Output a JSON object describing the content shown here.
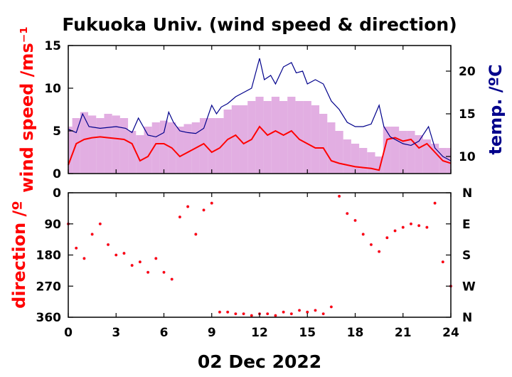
{
  "chart_data": [
    {
      "type": "line",
      "title": "Fukuoka Univ. (wind speed & direction)",
      "xlabel": "02 Dec 2022",
      "xlim": [
        0,
        24
      ],
      "x_ticks": [
        0,
        3,
        6,
        9,
        12,
        15,
        18,
        21,
        24
      ],
      "ylabel": "wind speed /ms⁻¹",
      "ylim": [
        0,
        15
      ],
      "y_ticks": [
        0,
        5,
        10,
        15
      ],
      "y2label": "temp. /ºC",
      "y2lim": [
        8,
        23
      ],
      "y2_ticks": [
        10,
        15,
        20
      ],
      "colors": {
        "mean_wind": "#ff0000",
        "gust_wind": "#dda0dd",
        "temperature": "#00008b"
      },
      "series": [
        {
          "name": "",
          "role": "gust wind speed",
          "style": "bars",
          "x": [
            0,
            0.5,
            1,
            1.5,
            2,
            2.5,
            3,
            3.5,
            4,
            4.5,
            5,
            5.5,
            6,
            6.5,
            7,
            7.5,
            8,
            8.5,
            9,
            9.5,
            10,
            10.5,
            11,
            11.5,
            12,
            12.5,
            13,
            13.5,
            14,
            14.5,
            15,
            15.5,
            16,
            16.5,
            17,
            17.5,
            18,
            18.5,
            19,
            19.5,
            20,
            20.5,
            21,
            21.5,
            22,
            22.5,
            23,
            23.5,
            24
          ],
          "y": [
            5.5,
            6.5,
            7.2,
            6.8,
            6.5,
            7.0,
            6.8,
            6.5,
            5.0,
            4.5,
            5.5,
            6.0,
            6.2,
            6.0,
            5.5,
            5.8,
            6.0,
            6.5,
            6.5,
            6.5,
            7.5,
            8.0,
            8.0,
            8.5,
            9.0,
            8.5,
            9.0,
            8.5,
            9.0,
            8.5,
            8.5,
            8.0,
            7.0,
            6.0,
            5.0,
            4.0,
            3.5,
            3.0,
            2.5,
            2.0,
            5.5,
            5.5,
            5.0,
            5.0,
            4.5,
            4.0,
            3.5,
            3.0,
            3.0
          ]
        },
        {
          "name": "",
          "role": "mean wind speed",
          "x": [
            0,
            0.5,
            1,
            1.5,
            2,
            2.5,
            3,
            3.5,
            4,
            4.5,
            5,
            5.5,
            6,
            6.5,
            7,
            7.5,
            8,
            8.5,
            9,
            9.5,
            10,
            10.5,
            11,
            11.5,
            12,
            12.5,
            13,
            13.5,
            14,
            14.5,
            15,
            15.5,
            16,
            16.5,
            17,
            17.5,
            18,
            18.5,
            19,
            19.5,
            20,
            20.5,
            21,
            21.5,
            22,
            22.5,
            23,
            23.5,
            24
          ],
          "y": [
            1.0,
            3.5,
            4.0,
            4.2,
            4.3,
            4.2,
            4.1,
            4.0,
            3.5,
            1.5,
            2.0,
            3.5,
            3.5,
            3.0,
            2.0,
            2.5,
            3.0,
            3.5,
            2.5,
            3.0,
            4.0,
            4.5,
            3.5,
            4.0,
            5.5,
            4.5,
            5.0,
            4.5,
            5.0,
            4.0,
            3.5,
            3.0,
            3.0,
            1.5,
            1.2,
            1.0,
            0.8,
            0.7,
            0.6,
            0.4,
            4.0,
            4.2,
            3.8,
            4.0,
            3.0,
            3.5,
            2.5,
            1.5,
            1.2
          ]
        },
        {
          "name": "",
          "role": "temperature",
          "axis": "right",
          "x": [
            0,
            0.5,
            0.9,
            1.3,
            2,
            3,
            3.6,
            4,
            4.4,
            5,
            5.5,
            6,
            6.3,
            6.6,
            7,
            7.5,
            8,
            8.5,
            9,
            9.3,
            9.6,
            10,
            10.5,
            11,
            11.5,
            12,
            12.3,
            12.7,
            13,
            13.5,
            14,
            14.3,
            14.7,
            15,
            15.5,
            16,
            16.5,
            17,
            17.5,
            18,
            18.5,
            19,
            19.5,
            19.8,
            20.2,
            21,
            21.5,
            22,
            22.6,
            23,
            23.5,
            24
          ],
          "y": [
            13.2,
            12.8,
            15.0,
            13.5,
            13.3,
            13.5,
            13.3,
            12.8,
            14.5,
            12.5,
            12.3,
            12.8,
            15.2,
            14.0,
            13.0,
            12.8,
            12.7,
            13.3,
            16.0,
            15.0,
            15.8,
            16.2,
            17.0,
            17.5,
            18.0,
            21.5,
            19.0,
            19.5,
            18.5,
            20.5,
            21.0,
            19.8,
            20.0,
            18.5,
            19.0,
            18.5,
            16.5,
            15.5,
            14.0,
            13.5,
            13.5,
            13.8,
            16.0,
            13.5,
            12.3,
            11.5,
            11.3,
            11.8,
            13.5,
            11.0,
            10.0,
            9.5
          ]
        }
      ]
    },
    {
      "type": "scatter",
      "xlim": [
        0,
        24
      ],
      "x_ticks": [
        0,
        3,
        6,
        9,
        12,
        15,
        18,
        21,
        24
      ],
      "ylabel": "direction /º",
      "ylim": [
        0,
        360
      ],
      "y_inverted": true,
      "y_ticks": [
        0,
        90,
        180,
        270,
        360
      ],
      "y2_tick_labels": [
        "N",
        "E",
        "S",
        "W",
        "N"
      ],
      "colors": {
        "mean_direction": "#ff0000",
        "instant_direction": "#dda0dd"
      },
      "series": [
        {
          "name": "",
          "role": "mean wind direction",
          "x": [
            0,
            0.5,
            1,
            1.5,
            2,
            2.5,
            3,
            3.5,
            4,
            4.5,
            5,
            5.5,
            6,
            6.5,
            7,
            7.5,
            8,
            8.5,
            9,
            9.5,
            10,
            10.5,
            11,
            11.5,
            12,
            12.5,
            13,
            13.5,
            14,
            14.5,
            15,
            15.5,
            16,
            16.5,
            17,
            17.5,
            18,
            18.5,
            19,
            19.5,
            20,
            20.5,
            21,
            21.5,
            22,
            22.5,
            23,
            23.5,
            24
          ],
          "y": [
            90,
            160,
            190,
            120,
            90,
            150,
            180,
            175,
            210,
            200,
            230,
            190,
            230,
            250,
            70,
            40,
            120,
            50,
            30,
            345,
            345,
            350,
            350,
            355,
            350,
            350,
            355,
            345,
            350,
            340,
            345,
            340,
            350,
            330,
            10,
            60,
            80,
            120,
            150,
            170,
            130,
            110,
            100,
            90,
            95,
            100,
            30,
            200,
            270
          ]
        }
      ]
    }
  ]
}
